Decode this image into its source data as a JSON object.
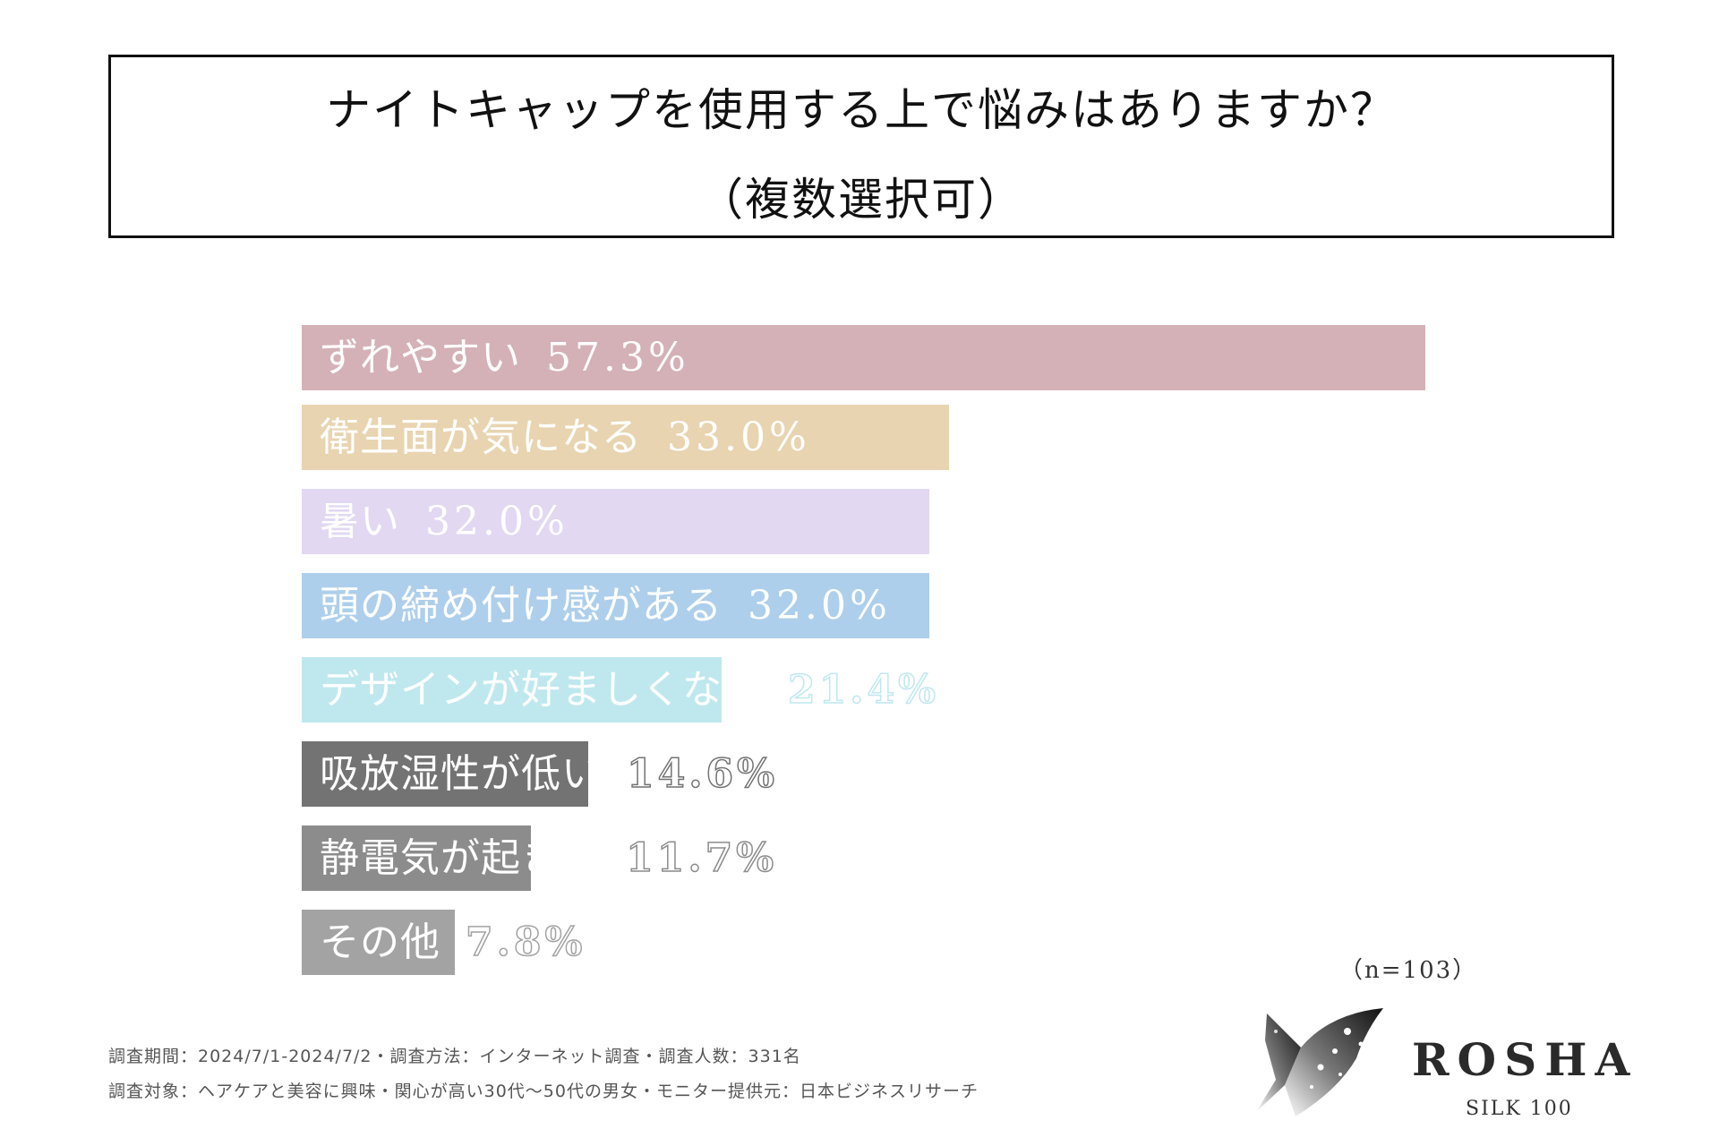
{
  "title": {
    "line1": "ナイトキャップを使用する上で悩みはありますか？",
    "line2": "（複数選択可）"
  },
  "chart_data": {
    "type": "bar",
    "orientation": "horizontal",
    "categories": [
      "ずれやすい",
      "衛生面が気になる",
      "暑い",
      "頭の締め付け感がある",
      "デザインが好ましくない",
      "吸放湿性が低い",
      "静電気が起きる",
      "その他"
    ],
    "values": [
      57.3,
      33.0,
      32.0,
      32.0,
      21.4,
      14.6,
      11.7,
      7.8
    ],
    "value_labels": [
      "57.3%",
      "33.0%",
      "32.0%",
      "32.0%",
      "21.4%",
      "14.6%",
      "11.7%",
      "7.8%"
    ],
    "colors": [
      "#d4b1b6",
      "#e8d4b0",
      "#e2d8f2",
      "#aecfeb",
      "#bfe8ee",
      "#737373",
      "#8c8c8c",
      "#a3a3a3"
    ],
    "label_colors": [
      "#ffffff",
      "#ffffff",
      "#ffffff",
      "#ffffff",
      "#ffffff",
      "#ffffff",
      "#ffffff",
      "#ffffff"
    ],
    "outside_label_colors": [
      "#ffffff",
      "#ffffff",
      "#ffffff",
      "#ffffff",
      "#bfe8ee",
      "#8a8a8a",
      "#9a9a9a",
      "#a3a3a3"
    ],
    "grid": false,
    "legend": "none"
  },
  "sample_note": "（n=103）",
  "footnotes": {
    "line1": "調査期間：2024/7/1-2024/7/2・調査方法：インターネット調査・調査人数：331名",
    "line2": "調査対象：ヘアケアと美容に興味・関心が高い30代～50代の男女・モニター提供元：日本ビジネスリサーチ"
  },
  "logo": {
    "name": "ROSHA",
    "sub": "SILK 100"
  }
}
